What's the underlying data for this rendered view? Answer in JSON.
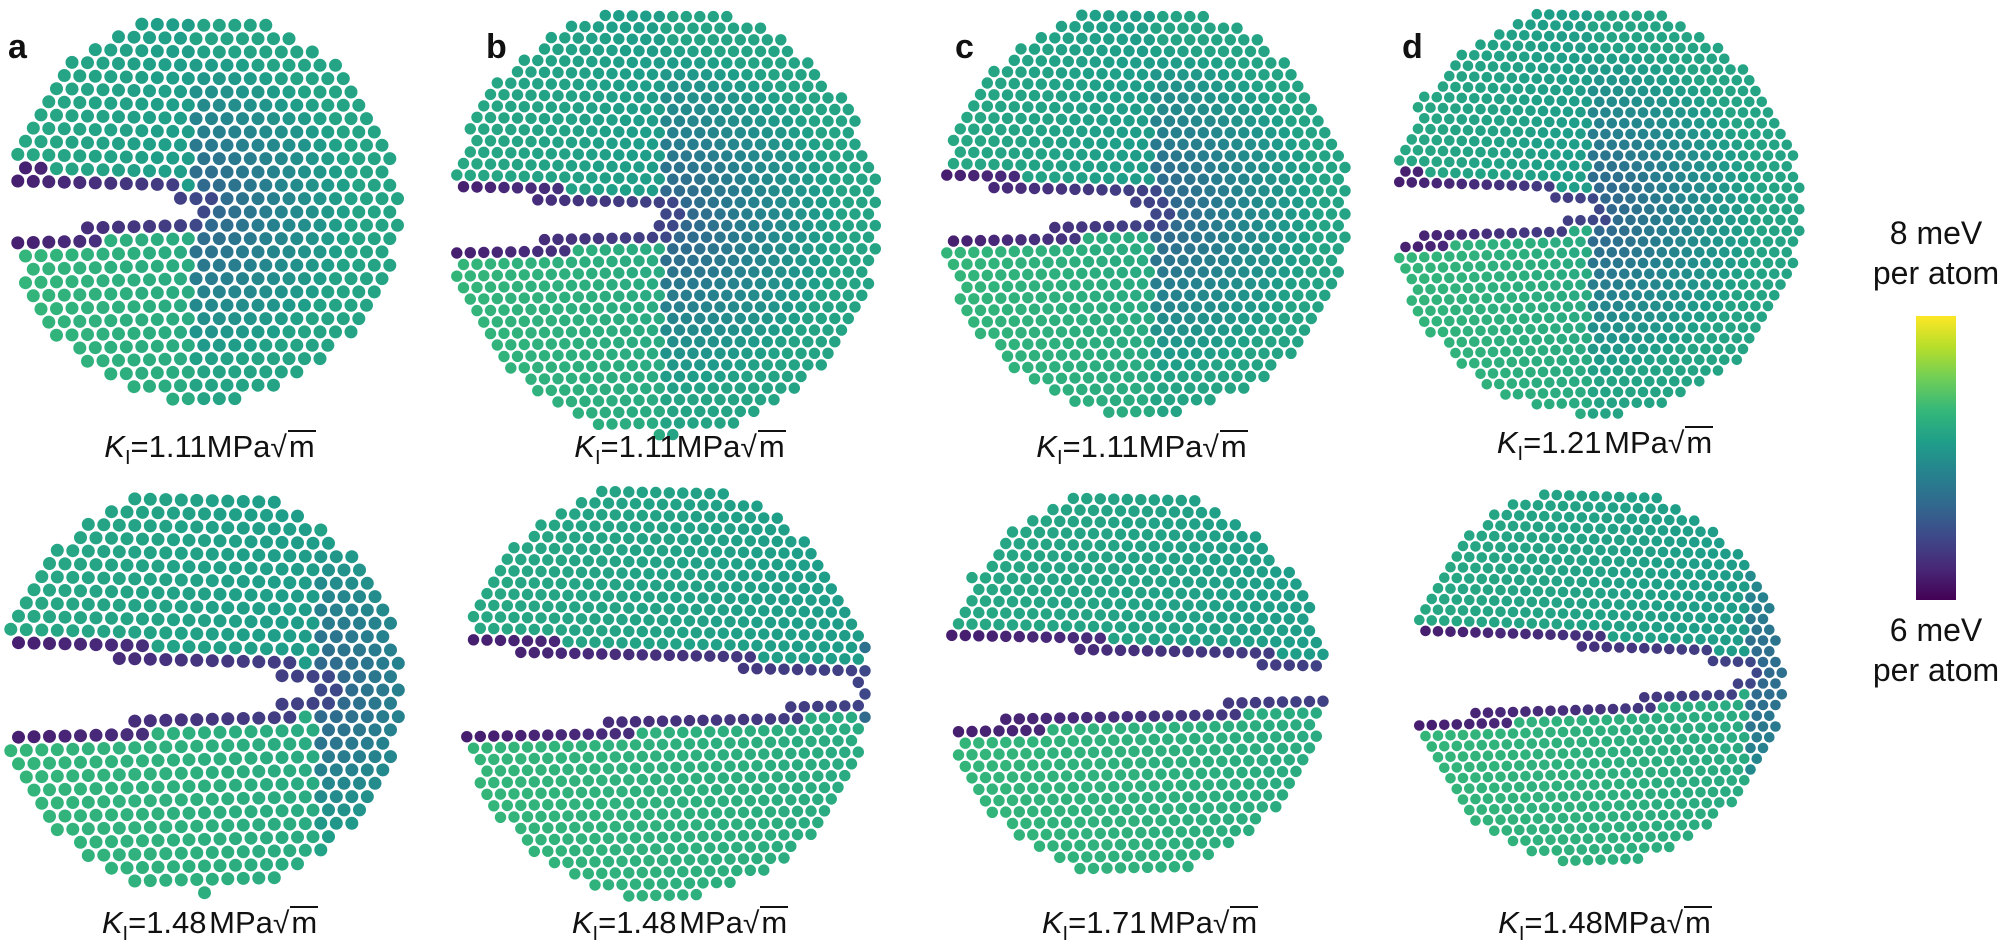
{
  "panels": [
    {
      "letter": "a",
      "top": {
        "value": "1.11",
        "unit": "MPa",
        "root": "m"
      },
      "bottom": {
        "value": "1.48",
        "unit": "MPa",
        "root": "m"
      }
    },
    {
      "letter": "b",
      "top": {
        "value": "1.11",
        "unit": "MPa",
        "root": "m"
      },
      "bottom": {
        "value": "1.48",
        "unit": "MPa",
        "root": "m"
      }
    },
    {
      "letter": "c",
      "top": {
        "value": "1.11",
        "unit": "MPa",
        "root": "m"
      },
      "bottom": {
        "value": "1.71",
        "unit": "MPa",
        "root": "m"
      }
    },
    {
      "letter": "d",
      "top": {
        "value": "1.21",
        "unit": "MPa",
        "root": "m"
      },
      "bottom": {
        "value": "1.48",
        "unit": "MPa",
        "root": "m"
      }
    }
  ],
  "kl_symbol": "K",
  "kl_subscript": "I",
  "kl_equals": "=",
  "colorbar": {
    "max_line1": "8 meV",
    "max_line2": "per atom",
    "min_line1": "6 meV",
    "min_line2": "per atom",
    "colors": [
      "#fde725",
      "#b5de2b",
      "#6ece58",
      "#35b779",
      "#1f9e89",
      "#26828e",
      "#31688e",
      "#3e4989",
      "#482878",
      "#440154"
    ]
  }
}
